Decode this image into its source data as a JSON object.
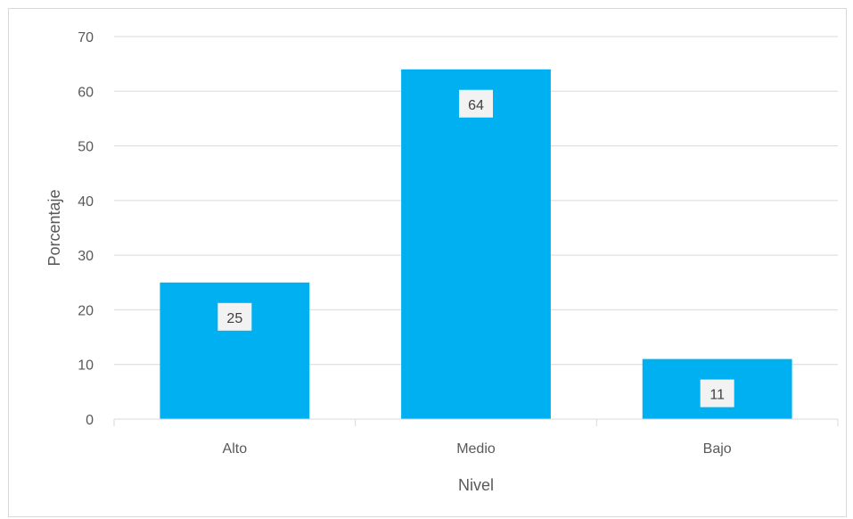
{
  "chart_data": {
    "type": "bar",
    "categories": [
      "Alto",
      "Medio",
      "Bajo"
    ],
    "values": [
      25,
      64,
      11
    ],
    "data_labels": [
      "25",
      "64",
      "11"
    ],
    "title": "",
    "xlabel": "Nivel",
    "ylabel": "Porcentaje",
    "ylim": [
      0,
      70
    ],
    "yticks": [
      0,
      10,
      20,
      30,
      40,
      50,
      60,
      70
    ],
    "grid": true,
    "legend": "none",
    "bar_color": "#00B0F0",
    "gridline_color": "#d9d9d9",
    "text_color": "#595959"
  }
}
